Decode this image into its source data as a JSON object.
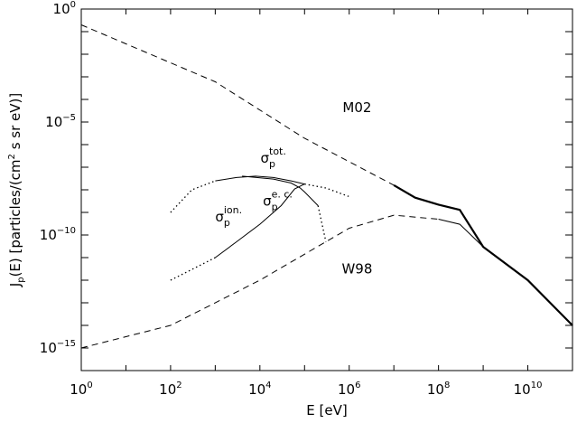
{
  "chart_data": {
    "type": "line",
    "xlabel": {
      "main": "E [eV]"
    },
    "ylabel": {
      "main": "J",
      "sub": "p",
      "rest": "(E) [particles/(cm",
      "sup": "2",
      "tail": " s sr eV)]"
    },
    "xscale": "log",
    "yscale": "log",
    "xlim": [
      1,
      100000000000.0
    ],
    "ylim": [
      1e-16,
      1
    ],
    "x_ticks": [
      {
        "value": 1,
        "base": "10",
        "exp": "0"
      },
      {
        "value": 100,
        "base": "10",
        "exp": "2"
      },
      {
        "value": 10000,
        "base": "10",
        "exp": "4"
      },
      {
        "value": 1000000,
        "base": "10",
        "exp": "6"
      },
      {
        "value": 100000000,
        "base": "10",
        "exp": "8"
      },
      {
        "value": 10000000000,
        "base": "10",
        "exp": "10"
      }
    ],
    "y_ticks": [
      {
        "value": 1,
        "base": "10",
        "exp": "0"
      },
      {
        "value": 1e-05,
        "base": "10",
        "exp": "−5"
      },
      {
        "value": 1e-10,
        "base": "10",
        "exp": "−10"
      },
      {
        "value": 1e-15,
        "base": "10",
        "exp": "−15"
      }
    ],
    "grid": false,
    "series": [
      {
        "style": "dashed",
        "points": [
          [
            1,
            0.2
          ],
          [
            1000.0,
            0.0006
          ],
          [
            100000.0,
            1.9e-06
          ],
          [
            10000000.0,
            1.6e-08
          ]
        ]
      },
      {
        "style": "solid-thick",
        "points": [
          [
            10000000.0,
            1.6e-08
          ],
          [
            30000000.0,
            4.5e-09
          ],
          [
            100000000.0,
            2.2e-09
          ],
          [
            300000000.0,
            1.3e-09
          ],
          [
            1000000000.0,
            3e-11
          ],
          [
            10000000000.0,
            1e-12
          ],
          [
            100000000000.0,
            1e-14
          ]
        ]
      },
      {
        "style": "dashed",
        "points": [
          [
            1,
            1e-15
          ],
          [
            100,
            1e-14
          ],
          [
            10000.0,
            1e-12
          ],
          [
            1000000.0,
            2e-10
          ],
          [
            10000000.0,
            7.5e-10
          ],
          [
            100000000.0,
            5e-10
          ]
        ]
      },
      {
        "style": "solid",
        "points": [
          [
            100000000.0,
            5e-10
          ],
          [
            300000000.0,
            3e-10
          ],
          [
            1000000000.0,
            3e-11
          ],
          [
            10000000000.0,
            1e-12
          ]
        ]
      },
      {
        "style": "dotted",
        "points": [
          [
            100,
            1e-09
          ],
          [
            300,
            1e-08
          ],
          [
            1000,
            2.5e-08
          ]
        ]
      },
      {
        "style": "solid",
        "points": [
          [
            1000,
            2.5e-08
          ],
          [
            3000,
            3.5e-08
          ],
          [
            8000,
            4e-08
          ],
          [
            20000.0,
            3.5e-08
          ],
          [
            50000.0,
            2.5e-08
          ],
          [
            100000.0,
            1.8e-08
          ]
        ]
      },
      {
        "style": "dotted",
        "points": [
          [
            100000.0,
            1.8e-08
          ],
          [
            300000.0,
            1.2e-08
          ],
          [
            1000000.0,
            5e-09
          ]
        ]
      },
      {
        "style": "solid",
        "points": [
          [
            4000,
            4e-08
          ],
          [
            20000.0,
            3e-08
          ],
          [
            50000.0,
            2e-08
          ],
          [
            80000.0,
            1.2e-08
          ],
          [
            100000.0,
            8e-09
          ],
          [
            200000.0,
            2e-09
          ]
        ]
      },
      {
        "style": "dotted",
        "points": [
          [
            200000.0,
            2e-09
          ],
          [
            300000.0,
            5e-11
          ]
        ]
      },
      {
        "style": "dotted",
        "points": [
          [
            100,
            1e-12
          ],
          [
            300,
            3e-12
          ],
          [
            1000,
            1e-11
          ]
        ]
      },
      {
        "style": "solid",
        "points": [
          [
            1000,
            1e-11
          ],
          [
            3000,
            5e-11
          ],
          [
            10000.0,
            3e-10
          ],
          [
            30000.0,
            2e-09
          ],
          [
            60000.0,
            1.1e-08
          ],
          [
            100000.0,
            1.8e-08
          ]
        ]
      }
    ],
    "annotations": [
      {
        "x": 1500000.0,
        "y": 2.8e-05,
        "text": "M02"
      },
      {
        "x": 1500000.0,
        "y": 2e-12,
        "text": "W98"
      },
      {
        "x": 20000.0,
        "y": 1.6e-07,
        "sym": "σ",
        "sub": "p",
        "sup": "tot."
      },
      {
        "x": 2000.0,
        "y": 4e-10,
        "sym": "σ",
        "sub": "p",
        "sup": "ion."
      },
      {
        "x": 25000.0,
        "y": 2e-09,
        "sym": "σ",
        "sub": "p",
        "sup": "e. c."
      }
    ]
  }
}
